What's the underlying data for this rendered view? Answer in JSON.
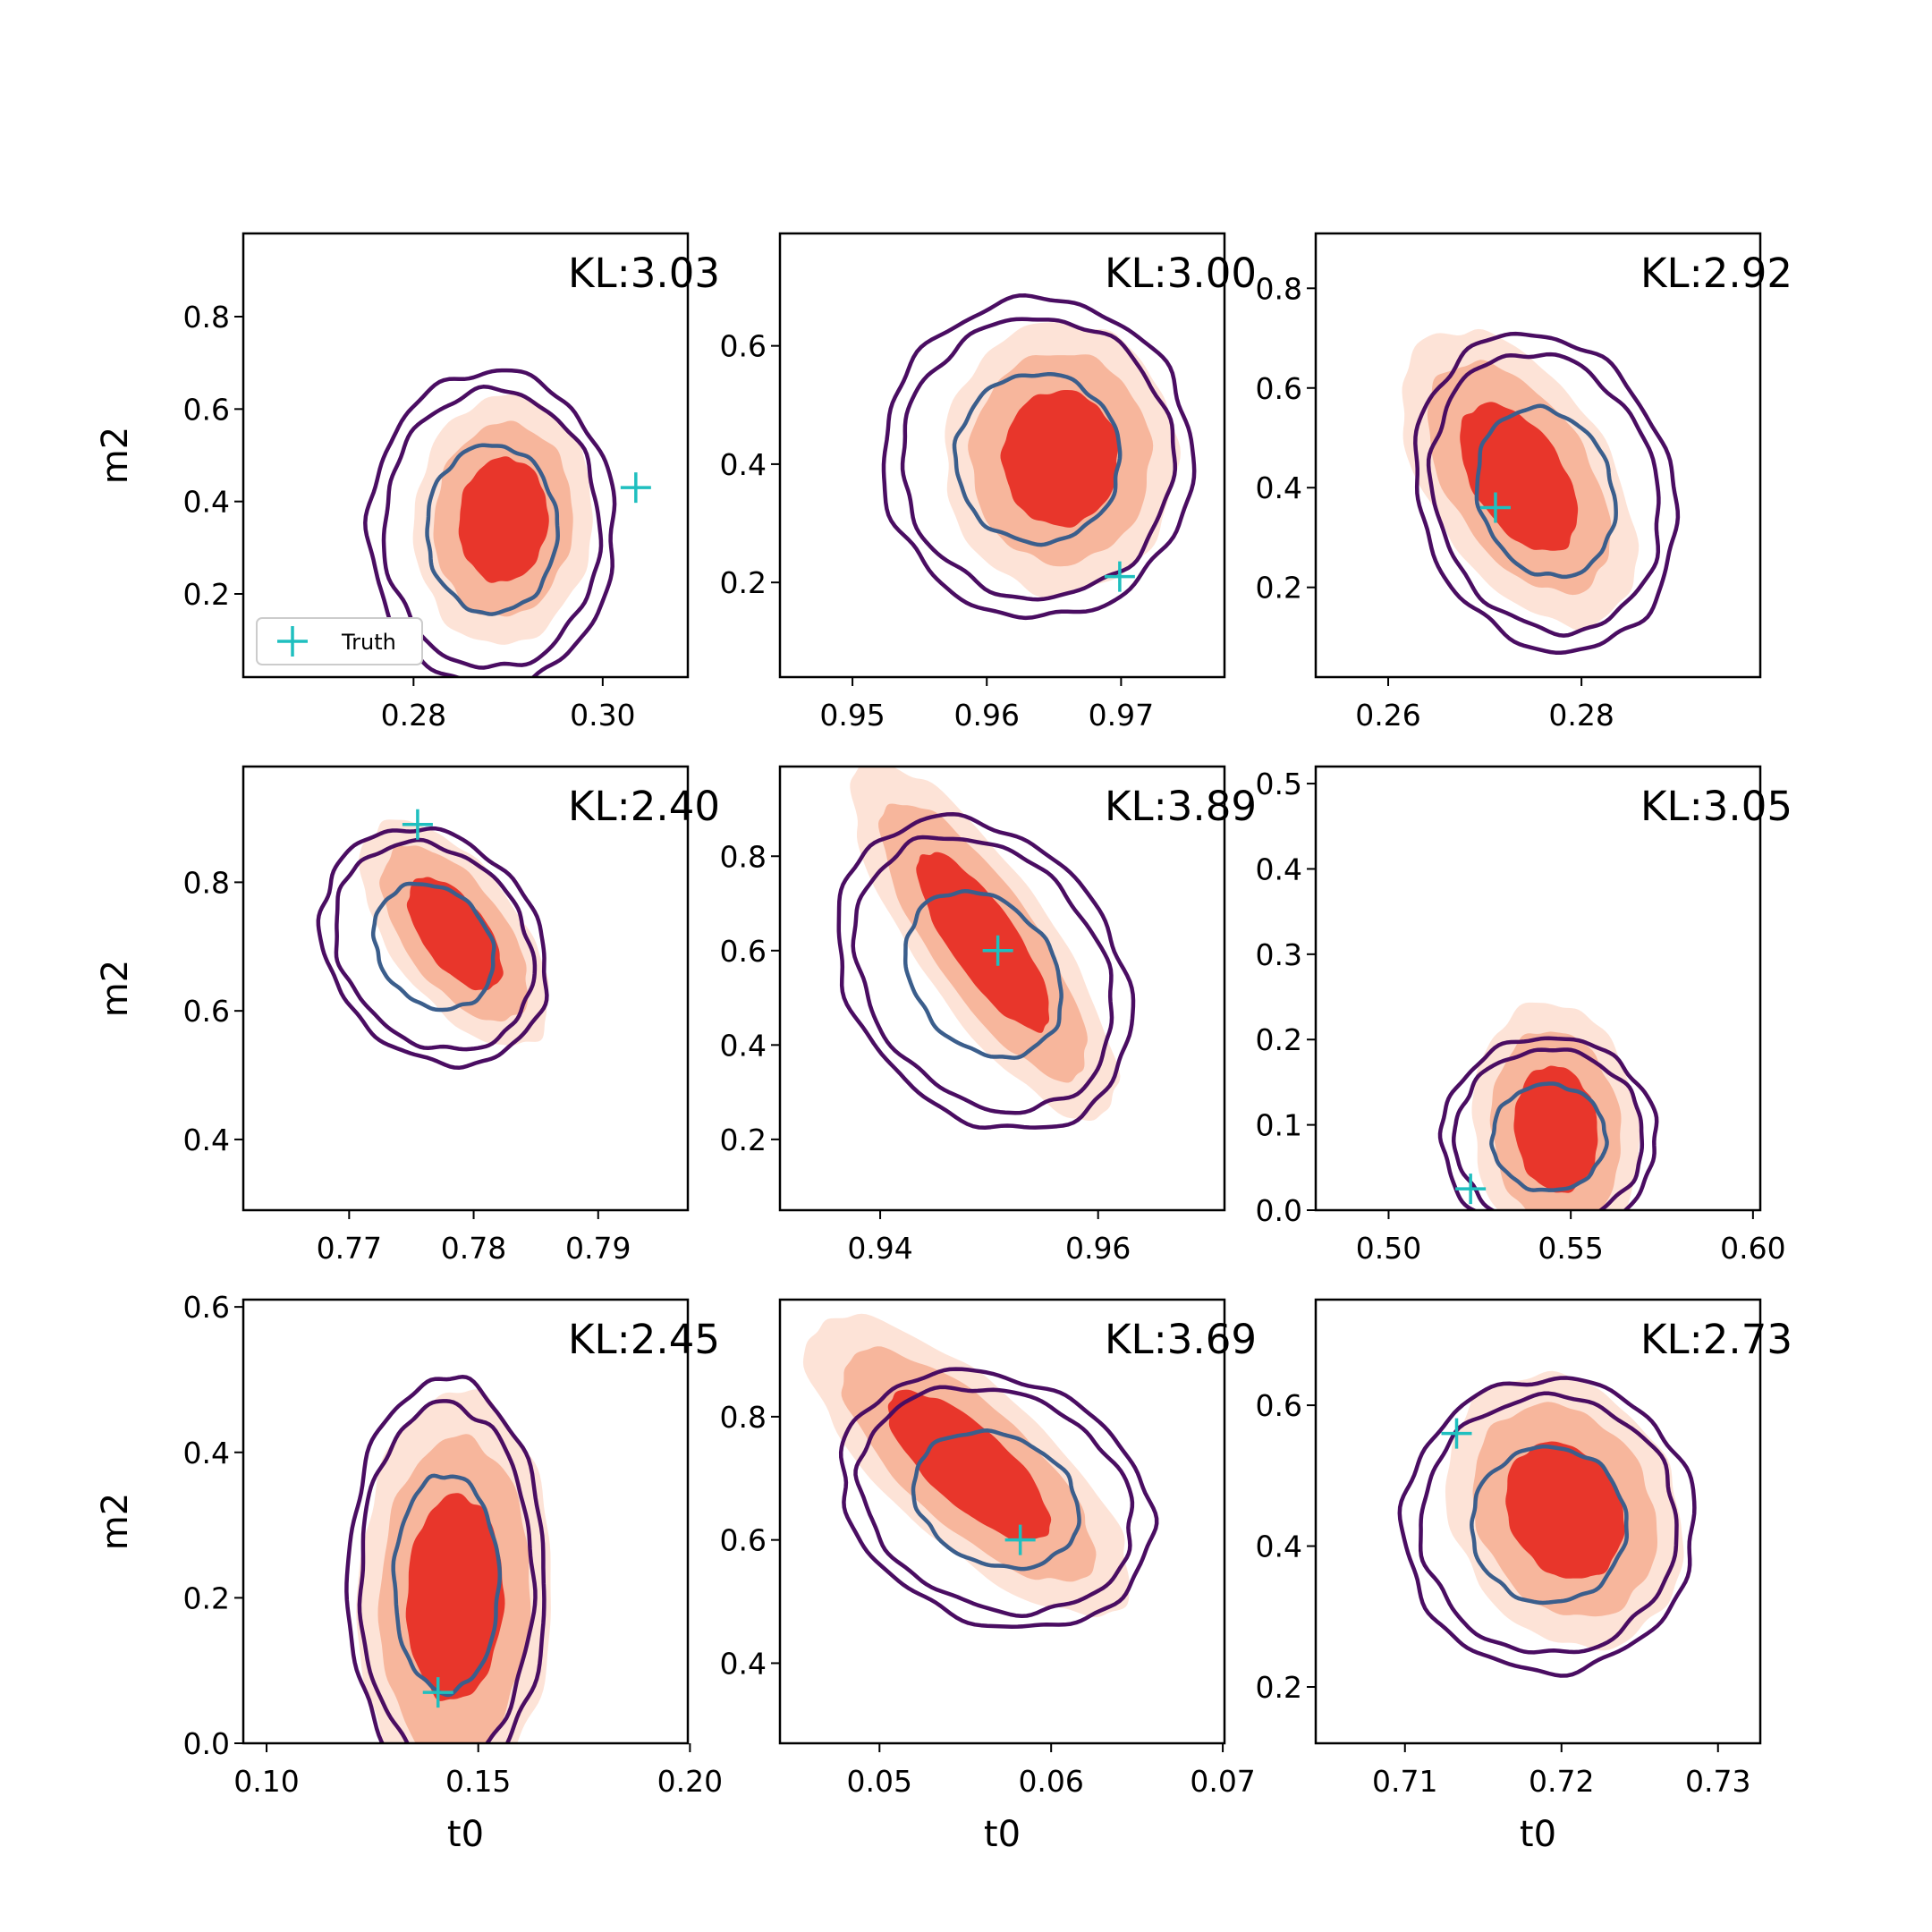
{
  "colors": {
    "fill_outer": "#fde3d7",
    "fill_mid": "#f7b69c",
    "fill_inner": "#e8362b",
    "contour_outer": "#4a0d62",
    "contour_mid": "#4a0d62",
    "contour_inner": "#3b5e8c",
    "truth_marker": "#1fbfbf"
  },
  "legend": {
    "label": "Truth",
    "location": "lower-left",
    "panel": 0
  },
  "chart_data": [
    {
      "type": "contour",
      "kl_label": "KL:3.03",
      "xlabel": "",
      "ylabel": "m2",
      "xlim": [
        0.262,
        0.309
      ],
      "ylim": [
        0.02,
        0.98
      ],
      "xticks": [
        0.28,
        0.3
      ],
      "xtick_labels": [
        "0.28",
        "0.30"
      ],
      "yticks": [
        0.2,
        0.4,
        0.6,
        0.8
      ],
      "ytick_labels": [
        "0.2",
        "0.4",
        "0.6",
        "0.8"
      ],
      "filled": {
        "center": [
          0.2895,
          0.36
        ],
        "sd": [
          0.0035,
          0.1
        ],
        "corr": 0.05
      },
      "lines": {
        "center": [
          0.2883,
          0.34
        ],
        "sd": [
          0.0053,
          0.14
        ],
        "corr": 0.0
      },
      "truth": [
        0.3035,
        0.43
      ]
    },
    {
      "type": "contour",
      "kl_label": "KL:3.00",
      "xlabel": "",
      "ylabel": "",
      "xlim": [
        0.9446,
        0.9777
      ],
      "ylim": [
        0.04,
        0.79
      ],
      "xticks": [
        0.95,
        0.96,
        0.97
      ],
      "xtick_labels": [
        "0.95",
        "0.96",
        "0.97"
      ],
      "yticks": [
        0.2,
        0.4,
        0.6
      ],
      "ytick_labels": [
        "0.2",
        "0.4",
        "0.6"
      ],
      "filled": {
        "center": [
          0.9655,
          0.41
        ],
        "sd": [
          0.0032,
          0.085
        ],
        "corr": 0.0
      },
      "lines": {
        "center": [
          0.9638,
          0.41
        ],
        "sd": [
          0.0047,
          0.11
        ],
        "corr": 0.0
      },
      "truth": [
        0.9699,
        0.21
      ]
    },
    {
      "type": "contour",
      "kl_label": "KL:2.92",
      "xlabel": "",
      "ylabel": "",
      "xlim": [
        0.2525,
        0.2985
      ],
      "ylim": [
        0.02,
        0.91
      ],
      "xticks": [
        0.26,
        0.28
      ],
      "xtick_labels": [
        "0.26",
        "0.28"
      ],
      "yticks": [
        0.2,
        0.4,
        0.6,
        0.8
      ],
      "ytick_labels": [
        "0.2",
        "0.4",
        "0.6",
        "0.8"
      ],
      "filled": {
        "center": [
          0.2735,
          0.42
        ],
        "sd": [
          0.0045,
          0.11
        ],
        "corr": -0.5
      },
      "lines": {
        "center": [
          0.2763,
          0.39
        ],
        "sd": [
          0.0055,
          0.13
        ],
        "corr": -0.15
      },
      "truth": [
        0.2711,
        0.36
      ]
    },
    {
      "type": "contour",
      "kl_label": "KL:2.40",
      "xlabel": "",
      "ylabel": "m2",
      "xlim": [
        0.7615,
        0.7972
      ],
      "ylim": [
        0.29,
        0.98
      ],
      "xticks": [
        0.77,
        0.78,
        0.79
      ],
      "xtick_labels": [
        "0.77",
        "0.78",
        "0.79"
      ],
      "yticks": [
        0.4,
        0.6,
        0.8
      ],
      "ytick_labels": [
        "0.4",
        "0.6",
        "0.8"
      ],
      "filled": {
        "center": [
          0.7785,
          0.72
        ],
        "sd": [
          0.0028,
          0.065
        ],
        "corr": -0.6
      },
      "lines": {
        "center": [
          0.7768,
          0.7
        ],
        "sd": [
          0.0037,
          0.075
        ],
        "corr": -0.2
      },
      "truth": [
        0.7755,
        0.89
      ]
    },
    {
      "type": "contour",
      "kl_label": "KL:3.89",
      "xlabel": "",
      "ylabel": "",
      "xlim": [
        0.9308,
        0.9716
      ],
      "ylim": [
        0.05,
        0.99
      ],
      "xticks": [
        0.94,
        0.96
      ],
      "xtick_labels": [
        "0.94",
        "0.96"
      ],
      "yticks": [
        0.2,
        0.4,
        0.6,
        0.8
      ],
      "ytick_labels": [
        "0.2",
        "0.4",
        "0.6",
        "0.8"
      ],
      "filled": {
        "center": [
          0.9495,
          0.62
        ],
        "sd": [
          0.0045,
          0.14
        ],
        "corr": -0.8
      },
      "lines": {
        "center": [
          0.9495,
          0.55
        ],
        "sd": [
          0.0055,
          0.135
        ],
        "corr": -0.25
      },
      "truth": [
        0.9508,
        0.6
      ]
    },
    {
      "type": "contour",
      "kl_label": "KL:3.05",
      "xlabel": "",
      "ylabel": "",
      "xlim": [
        0.48,
        0.602
      ],
      "ylim": [
        0.0,
        0.52
      ],
      "xticks": [
        0.5,
        0.55,
        0.6
      ],
      "xtick_labels": [
        "0.50",
        "0.55",
        "0.60"
      ],
      "yticks": [
        0.0,
        0.1,
        0.2,
        0.3,
        0.4,
        0.5
      ],
      "ytick_labels": [
        "0.0",
        "0.1",
        "0.2",
        "0.3",
        "0.4",
        "0.5"
      ],
      "filled": {
        "center": [
          0.546,
          0.095
        ],
        "sd": [
          0.0085,
          0.055
        ],
        "corr": -0.1
      },
      "lines": {
        "center": [
          0.544,
          0.085
        ],
        "sd": [
          0.012,
          0.048
        ],
        "corr": 0.0
      },
      "truth": [
        0.5225,
        0.025
      ]
    },
    {
      "type": "contour",
      "kl_label": "KL:2.45",
      "xlabel": "t0",
      "ylabel": "m2",
      "xlim": [
        0.0945,
        0.1995
      ],
      "ylim": [
        0.0,
        0.61
      ],
      "xticks": [
        0.1,
        0.15,
        0.2
      ],
      "xtick_labels": [
        "0.10",
        "0.15",
        "0.20"
      ],
      "yticks": [
        0.0,
        0.2,
        0.4,
        0.6
      ],
      "ytick_labels": [
        "0.0",
        "0.2",
        "0.4",
        "0.6"
      ],
      "filled": {
        "center": [
          0.1445,
          0.2
        ],
        "sd": [
          0.0085,
          0.105
        ],
        "corr": 0.05
      },
      "lines": {
        "center": [
          0.1425,
          0.22
        ],
        "sd": [
          0.0095,
          0.115
        ],
        "corr": 0.0
      },
      "truth": [
        0.1405,
        0.07
      ]
    },
    {
      "type": "contour",
      "kl_label": "KL:3.69",
      "xlabel": "t0",
      "ylabel": "",
      "xlim": [
        0.0442,
        0.0701
      ],
      "ylim": [
        0.27,
        0.99
      ],
      "xticks": [
        0.05,
        0.06,
        0.07
      ],
      "xtick_labels": [
        "0.05",
        "0.06",
        "0.07"
      ],
      "yticks": [
        0.4,
        0.6,
        0.8
      ],
      "ytick_labels": [
        "0.4",
        "0.6",
        "0.8"
      ],
      "filled": {
        "center": [
          0.0552,
          0.72
        ],
        "sd": [
          0.0035,
          0.09
        ],
        "corr": -0.75
      },
      "lines": {
        "center": [
          0.0568,
          0.665
        ],
        "sd": [
          0.0037,
          0.085
        ],
        "corr": -0.2
      },
      "truth": [
        0.0582,
        0.6
      ]
    },
    {
      "type": "contour",
      "kl_label": "KL:2.73",
      "xlabel": "t0",
      "ylabel": "",
      "xlim": [
        0.7043,
        0.7327
      ],
      "ylim": [
        0.12,
        0.75
      ],
      "xticks": [
        0.71,
        0.72,
        0.73
      ],
      "xtick_labels": [
        "0.71",
        "0.72",
        "0.73"
      ],
      "yticks": [
        0.2,
        0.4,
        0.6
      ],
      "ytick_labels": [
        "0.2",
        "0.4",
        "0.6"
      ],
      "filled": {
        "center": [
          0.7202,
          0.45
        ],
        "sd": [
          0.0028,
          0.072
        ],
        "corr": -0.2
      },
      "lines": {
        "center": [
          0.7192,
          0.43
        ],
        "sd": [
          0.0038,
          0.085
        ],
        "corr": 0.0
      },
      "truth": [
        0.7133,
        0.56
      ]
    }
  ]
}
